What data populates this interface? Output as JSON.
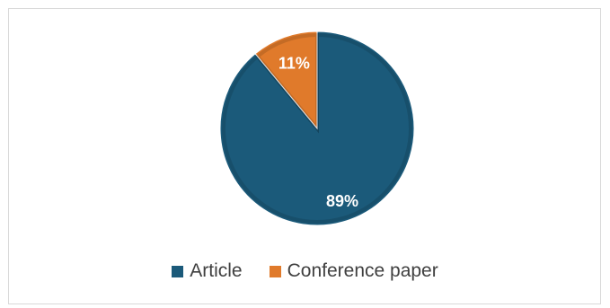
{
  "chart_data": {
    "type": "pie",
    "title": "",
    "slices": [
      {
        "label": "Article",
        "value": 89,
        "display": "89%",
        "color": "#1b5a7a"
      },
      {
        "label": "Conference paper",
        "value": 11,
        "display": "11%",
        "color": "#e07a2b"
      }
    ],
    "start_angle_deg": 0,
    "direction": "clockwise",
    "legend_position": "bottom"
  }
}
